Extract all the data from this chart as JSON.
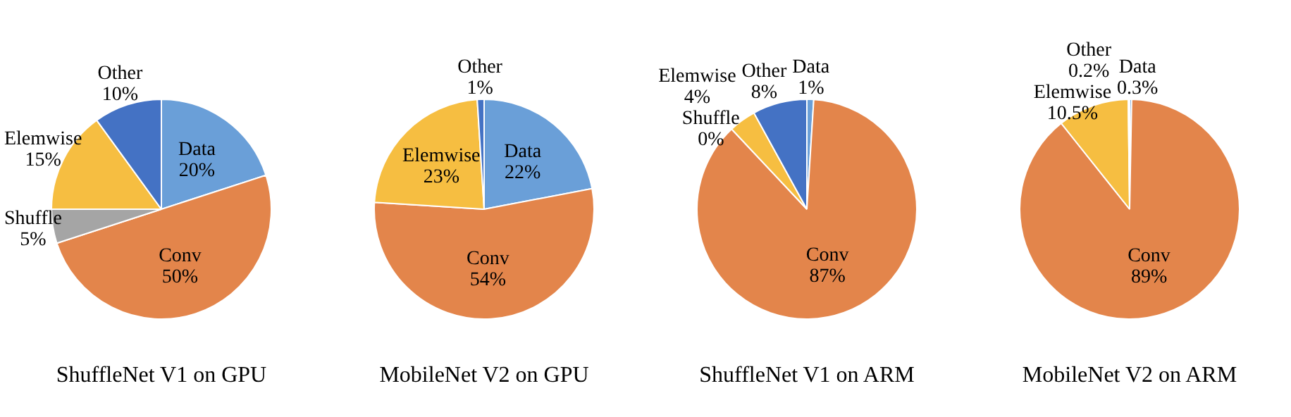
{
  "chart_data": [
    {
      "type": "pie",
      "title": "ShuffleNet V1 on GPU",
      "categories": [
        "Data",
        "Conv",
        "Shuffle",
        "Elemwise",
        "Other"
      ],
      "values": [
        20,
        50,
        5,
        15,
        10
      ],
      "value_labels": [
        "20%",
        "50%",
        "5%",
        "15%",
        "10%"
      ],
      "colors": [
        "#6a9fd8",
        "#e3854b",
        "#a5a5a5",
        "#f6be41",
        "#4472c4"
      ],
      "legend": false
    },
    {
      "type": "pie",
      "title": "MobileNet V2 on GPU",
      "categories": [
        "Data",
        "Conv",
        "Elemwise",
        "Other"
      ],
      "values": [
        22,
        54,
        23,
        1
      ],
      "value_labels": [
        "22%",
        "54%",
        "23%",
        "1%"
      ],
      "colors": [
        "#6a9fd8",
        "#e3854b",
        "#f6be41",
        "#4472c4"
      ],
      "legend": false
    },
    {
      "type": "pie",
      "title": "ShuffleNet V1 on ARM",
      "categories": [
        "Data",
        "Conv",
        "Shuffle",
        "Elemwise",
        "Other"
      ],
      "values": [
        1,
        87,
        0,
        4,
        8
      ],
      "value_labels": [
        "1%",
        "87%",
        "0%",
        "4%",
        "8%"
      ],
      "colors": [
        "#6a9fd8",
        "#e3854b",
        "#a5a5a5",
        "#f6be41",
        "#4472c4"
      ],
      "legend": false
    },
    {
      "type": "pie",
      "title": "MobileNet V2 on ARM",
      "categories": [
        "Data",
        "Conv",
        "Elemwise",
        "Other"
      ],
      "values": [
        0.3,
        89,
        10.5,
        0.2
      ],
      "value_labels": [
        "0.3%",
        "89%",
        "10.5%",
        "0.2%"
      ],
      "colors": [
        "#6a9fd8",
        "#e3854b",
        "#f6be41",
        "#4472c4"
      ],
      "legend": false
    }
  ]
}
